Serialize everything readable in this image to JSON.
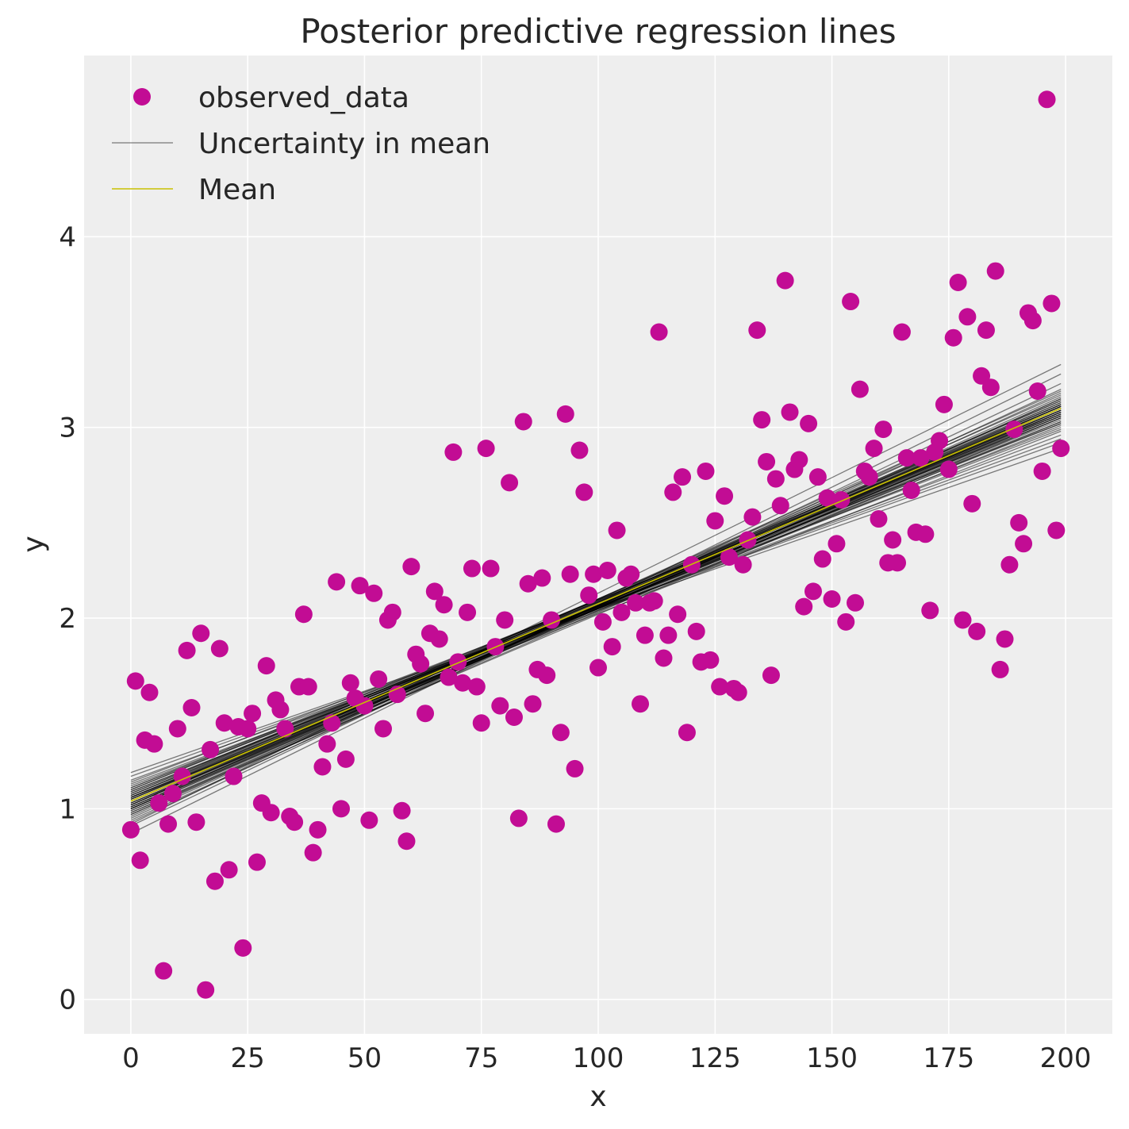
{
  "chart_data": {
    "type": "scatter",
    "title": "Posterior predictive regression lines",
    "xlabel": "x",
    "ylabel": "y",
    "xlim": [
      -10,
      210
    ],
    "ylim": [
      -0.18,
      4.95
    ],
    "xticks": [
      0,
      25,
      50,
      75,
      100,
      125,
      150,
      175,
      200
    ],
    "yticks": [
      0,
      1,
      2,
      3,
      4
    ],
    "xtick_labels": [
      "0",
      "25",
      "50",
      "75",
      "100",
      "125",
      "150",
      "175",
      "200"
    ],
    "ytick_labels": [
      "0",
      "1",
      "2",
      "3",
      "4"
    ],
    "grid": true,
    "legend_position": "top-left",
    "colors": {
      "background": "#eeeeee",
      "grid": "#ffffff",
      "points": "#c20c94",
      "uncertainty": "#000000",
      "mean": "#c8c000"
    },
    "series": [
      {
        "name": "observed_data",
        "kind": "scatter",
        "points": [
          [
            0,
            0.89
          ],
          [
            1,
            1.67
          ],
          [
            2,
            0.73
          ],
          [
            3,
            1.36
          ],
          [
            4,
            1.61
          ],
          [
            5,
            1.34
          ],
          [
            6,
            1.03
          ],
          [
            7,
            0.15
          ],
          [
            8,
            0.92
          ],
          [
            9,
            1.08
          ],
          [
            10,
            1.42
          ],
          [
            11,
            1.17
          ],
          [
            12,
            1.83
          ],
          [
            13,
            1.53
          ],
          [
            14,
            0.93
          ],
          [
            15,
            1.92
          ],
          [
            16,
            0.05
          ],
          [
            17,
            1.31
          ],
          [
            18,
            0.62
          ],
          [
            19,
            1.84
          ],
          [
            20,
            1.45
          ],
          [
            21,
            0.68
          ],
          [
            22,
            1.17
          ],
          [
            23,
            1.43
          ],
          [
            24,
            0.27
          ],
          [
            25,
            1.42
          ],
          [
            26,
            1.5
          ],
          [
            27,
            0.72
          ],
          [
            28,
            1.03
          ],
          [
            29,
            1.75
          ],
          [
            30,
            0.98
          ],
          [
            31,
            1.57
          ],
          [
            32,
            1.52
          ],
          [
            33,
            1.42
          ],
          [
            34,
            0.96
          ],
          [
            35,
            0.93
          ],
          [
            36,
            1.64
          ],
          [
            37,
            2.02
          ],
          [
            38,
            1.64
          ],
          [
            39,
            0.77
          ],
          [
            40,
            0.89
          ],
          [
            41,
            1.22
          ],
          [
            42,
            1.34
          ],
          [
            43,
            1.45
          ],
          [
            44,
            2.19
          ],
          [
            45,
            1.0
          ],
          [
            46,
            1.26
          ],
          [
            47,
            1.66
          ],
          [
            48,
            1.58
          ],
          [
            49,
            2.17
          ],
          [
            50,
            1.54
          ],
          [
            51,
            0.94
          ],
          [
            52,
            2.13
          ],
          [
            53,
            1.68
          ],
          [
            54,
            1.42
          ],
          [
            55,
            1.99
          ],
          [
            56,
            2.03
          ],
          [
            57,
            1.6
          ],
          [
            58,
            0.99
          ],
          [
            59,
            0.83
          ],
          [
            60,
            2.27
          ],
          [
            61,
            1.81
          ],
          [
            62,
            1.76
          ],
          [
            63,
            1.5
          ],
          [
            64,
            1.92
          ],
          [
            65,
            2.14
          ],
          [
            66,
            1.89
          ],
          [
            67,
            2.07
          ],
          [
            68,
            1.69
          ],
          [
            69,
            2.87
          ],
          [
            70,
            1.77
          ],
          [
            71,
            1.66
          ],
          [
            72,
            2.03
          ],
          [
            73,
            2.26
          ],
          [
            74,
            1.64
          ],
          [
            75,
            1.45
          ],
          [
            76,
            2.89
          ],
          [
            77,
            2.26
          ],
          [
            78,
            1.85
          ],
          [
            79,
            1.54
          ],
          [
            80,
            1.99
          ],
          [
            81,
            2.71
          ],
          [
            82,
            1.48
          ],
          [
            83,
            0.95
          ],
          [
            84,
            3.03
          ],
          [
            85,
            2.18
          ],
          [
            86,
            1.55
          ],
          [
            87,
            1.73
          ],
          [
            88,
            2.21
          ],
          [
            89,
            1.7
          ],
          [
            90,
            1.99
          ],
          [
            91,
            0.92
          ],
          [
            92,
            1.4
          ],
          [
            93,
            3.07
          ],
          [
            94,
            2.23
          ],
          [
            95,
            1.21
          ],
          [
            96,
            2.88
          ],
          [
            97,
            2.66
          ],
          [
            98,
            2.12
          ],
          [
            99,
            2.23
          ],
          [
            100,
            1.74
          ],
          [
            101,
            1.98
          ],
          [
            102,
            2.25
          ],
          [
            103,
            1.85
          ],
          [
            104,
            2.46
          ],
          [
            105,
            2.03
          ],
          [
            106,
            2.21
          ],
          [
            107,
            2.23
          ],
          [
            108,
            2.08
          ],
          [
            109,
            1.55
          ],
          [
            110,
            1.91
          ],
          [
            111,
            2.08
          ],
          [
            112,
            2.09
          ],
          [
            113,
            3.5
          ],
          [
            114,
            1.79
          ],
          [
            115,
            1.91
          ],
          [
            116,
            2.66
          ],
          [
            117,
            2.02
          ],
          [
            118,
            2.74
          ],
          [
            119,
            1.4
          ],
          [
            120,
            2.28
          ],
          [
            121,
            1.93
          ],
          [
            122,
            1.77
          ],
          [
            123,
            2.77
          ],
          [
            124,
            1.78
          ],
          [
            125,
            2.51
          ],
          [
            126,
            1.64
          ],
          [
            127,
            2.64
          ],
          [
            128,
            2.32
          ],
          [
            129,
            1.63
          ],
          [
            130,
            1.61
          ],
          [
            131,
            2.28
          ],
          [
            132,
            2.41
          ],
          [
            133,
            2.53
          ],
          [
            134,
            3.51
          ],
          [
            135,
            3.04
          ],
          [
            136,
            2.82
          ],
          [
            137,
            1.7
          ],
          [
            138,
            2.73
          ],
          [
            139,
            2.59
          ],
          [
            140,
            3.77
          ],
          [
            141,
            3.08
          ],
          [
            142,
            2.78
          ],
          [
            143,
            2.83
          ],
          [
            144,
            2.06
          ],
          [
            145,
            3.02
          ],
          [
            146,
            2.14
          ],
          [
            147,
            2.74
          ],
          [
            148,
            2.31
          ],
          [
            149,
            2.63
          ],
          [
            150,
            2.1
          ],
          [
            151,
            2.39
          ],
          [
            152,
            2.62
          ],
          [
            153,
            1.98
          ],
          [
            154,
            3.66
          ],
          [
            155,
            2.08
          ],
          [
            156,
            3.2
          ],
          [
            157,
            2.77
          ],
          [
            158,
            2.74
          ],
          [
            159,
            2.89
          ],
          [
            160,
            2.52
          ],
          [
            161,
            2.99
          ],
          [
            162,
            2.29
          ],
          [
            163,
            2.41
          ],
          [
            164,
            2.29
          ],
          [
            165,
            3.5
          ],
          [
            166,
            2.84
          ],
          [
            167,
            2.67
          ],
          [
            168,
            2.45
          ],
          [
            169,
            2.84
          ],
          [
            170,
            2.44
          ],
          [
            171,
            2.04
          ],
          [
            172,
            2.87
          ],
          [
            173,
            2.93
          ],
          [
            174,
            3.12
          ],
          [
            175,
            2.78
          ],
          [
            176,
            3.47
          ],
          [
            177,
            3.76
          ],
          [
            178,
            1.99
          ],
          [
            179,
            3.58
          ],
          [
            180,
            2.6
          ],
          [
            181,
            1.93
          ],
          [
            182,
            3.27
          ],
          [
            183,
            3.51
          ],
          [
            184,
            3.21
          ],
          [
            185,
            3.82
          ],
          [
            186,
            1.73
          ],
          [
            187,
            1.89
          ],
          [
            188,
            2.28
          ],
          [
            189,
            2.99
          ],
          [
            190,
            2.5
          ],
          [
            191,
            2.39
          ],
          [
            192,
            3.6
          ],
          [
            193,
            3.56
          ],
          [
            194,
            3.19
          ],
          [
            195,
            2.77
          ],
          [
            196,
            4.72
          ],
          [
            197,
            3.65
          ],
          [
            198,
            2.46
          ],
          [
            199,
            2.89
          ]
        ]
      },
      {
        "name": "Uncertainty in mean",
        "kind": "lines",
        "x_range": [
          0,
          199
        ],
        "lines": [
          [
            0.99,
            3.1
          ],
          [
            1.02,
            3.08
          ],
          [
            1.05,
            3.06
          ],
          [
            1.0,
            3.12
          ],
          [
            1.07,
            3.04
          ],
          [
            1.03,
            3.11
          ],
          [
            0.97,
            3.15
          ],
          [
            1.09,
            3.02
          ],
          [
            1.01,
            3.09
          ],
          [
            1.06,
            3.07
          ],
          [
            0.95,
            3.18
          ],
          [
            1.11,
            3.0
          ],
          [
            1.04,
            3.13
          ],
          [
            0.98,
            3.05
          ],
          [
            1.08,
            3.1
          ],
          [
            1.02,
            3.14
          ],
          [
            1.13,
            2.96
          ],
          [
            0.93,
            3.2
          ],
          [
            1.05,
            3.09
          ],
          [
            1.0,
            3.07
          ],
          [
            1.1,
            3.05
          ],
          [
            0.96,
            3.16
          ],
          [
            1.07,
            3.12
          ],
          [
            1.03,
            3.03
          ],
          [
            1.15,
            2.94
          ],
          [
            0.91,
            3.23
          ],
          [
            1.04,
            3.08
          ],
          [
            1.01,
            3.11
          ],
          [
            1.12,
            2.99
          ],
          [
            0.99,
            3.13
          ],
          [
            1.06,
            3.01
          ],
          [
            1.02,
            3.17
          ],
          [
            1.17,
            2.92
          ],
          [
            0.94,
            3.15
          ],
          [
            1.08,
            3.06
          ],
          [
            1.0,
            3.1
          ],
          [
            1.05,
            3.14
          ],
          [
            0.97,
            3.08
          ],
          [
            1.09,
            3.03
          ],
          [
            1.03,
            3.06
          ],
          [
            1.19,
            2.89
          ],
          [
            0.87,
            3.28
          ],
          [
            1.06,
            3.11
          ],
          [
            1.01,
            3.09
          ],
          [
            1.11,
            3.07
          ],
          [
            0.98,
            3.11
          ],
          [
            1.04,
            3.05
          ],
          [
            1.07,
            3.09
          ],
          [
            1.14,
            3.02
          ],
          [
            0.92,
            3.33
          ],
          [
            1.02,
            3.12
          ],
          [
            1.06,
            2.98
          ],
          [
            1.0,
            3.19
          ],
          [
            1.1,
            3.08
          ]
        ]
      },
      {
        "name": "Mean",
        "kind": "line",
        "x_range": [
          0,
          199
        ],
        "y_range": [
          1.04,
          3.1
        ]
      }
    ]
  }
}
